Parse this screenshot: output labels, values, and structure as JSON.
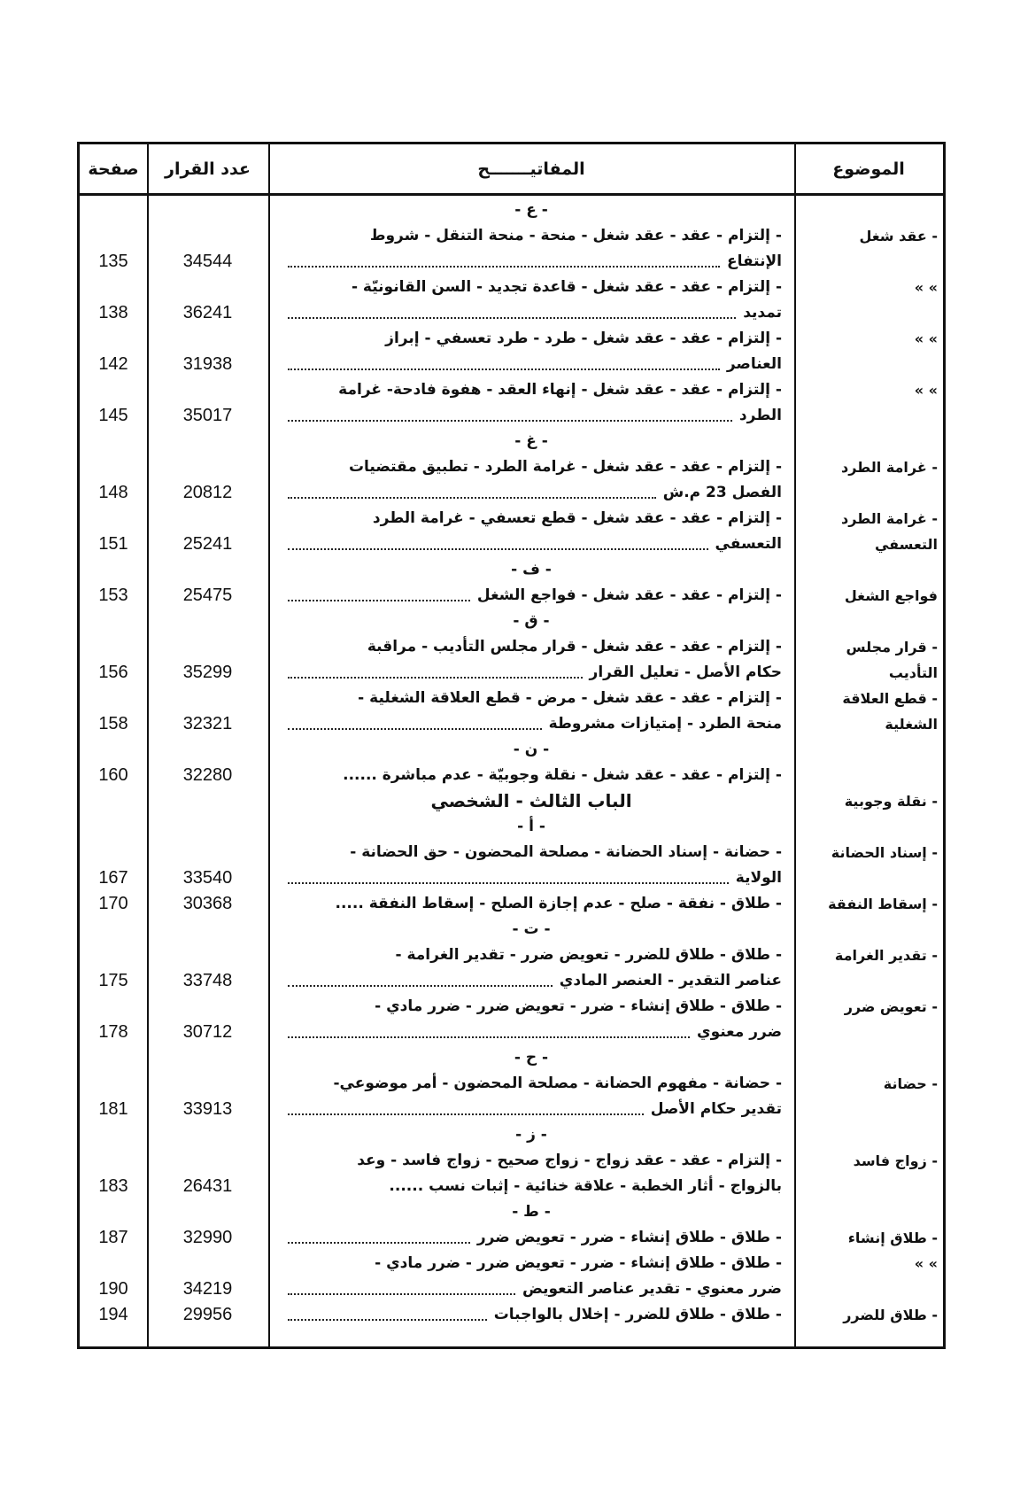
{
  "header": {
    "subject": "الموضوع",
    "keywords": "المفاتيـــــــح",
    "decision": "عدد القرار",
    "page": "صفحة"
  },
  "ditto": "»      »",
  "blocks": [
    {
      "letter": "- ع -"
    },
    {
      "subject": "- عقد شغل",
      "lines": [
        "- إلتزام - عقد - عقد شغل - منحة - منحة التنقل - شروط",
        "الإنتفاع"
      ],
      "decision": "34544",
      "page": "135"
    },
    {
      "subject": "»      »",
      "lines": [
        "- إلتزام - عقد - عقد شغل - قاعدة تجديد - السن القانونيّة -",
        "تمديد"
      ],
      "decision": "36241",
      "page": "138"
    },
    {
      "subject": "»      »",
      "lines": [
        "- إلتزام - عقد - عقد شغل - طرد - طرد تعسفي - إبراز",
        "العناصر"
      ],
      "decision": "31938",
      "page": "142"
    },
    {
      "subject": "»      »",
      "lines": [
        "- إلتزام - عقد - عقد شغل - إنهاء العقد - هفوة فادحة- غرامة",
        "الطرد"
      ],
      "decision": "35017",
      "page": "145"
    },
    {
      "letter": "- غ -"
    },
    {
      "subject": "- غرامة الطرد",
      "lines": [
        "- إلتزام - عقد - عقد شغل - غرامة الطرد - تطبيق مقتضيات",
        "الفصل 23 م.ش"
      ],
      "decision": "20812",
      "page": "148"
    },
    {
      "subject": "- غرامة الطرد التعسفي",
      "lines": [
        "- إلتزام - عقد - عقد شغل - قطع تعسفي - غرامة الطرد",
        "التعسفي"
      ],
      "decision": "25241",
      "page": "151"
    },
    {
      "letter": "- ف -"
    },
    {
      "subject": "فواجع الشغل",
      "lines": [
        "- إلتزام - عقد - عقد شغل - فواجع الشغل"
      ],
      "decision": "25475",
      "page": "153"
    },
    {
      "letter": "- ق -"
    },
    {
      "subject": "- قرار مجلس التأديب",
      "lines": [
        "- إلتزام - عقد - عقد شغل - قرار مجلس التأديب - مراقبة",
        "حكام الأصل - تعليل القرار"
      ],
      "decision": "35299",
      "page": "156"
    },
    {
      "subject": "- قطع العلاقة الشغلية",
      "lines": [
        "- إلتزام - عقد - عقد شغل - مرض - قطع العلاقة الشغلية -",
        "منحة الطرد - إمتيازات مشروطة"
      ],
      "decision": "32321",
      "page": "158"
    },
    {
      "letter": "- ن -"
    },
    {
      "subject": "",
      "lines": [
        "- إلتزام - عقد - عقد شغل - نقلة وجوبيّة - عدم مباشرة ......"
      ],
      "decision": "32280",
      "page": "160"
    },
    {
      "chapter": "الباب الثالث - الشخصي",
      "subject": "- نقلة وجوبية"
    },
    {
      "letter": "- أ -"
    },
    {
      "subject": "- إسناد الحضانة",
      "lines": [
        "- حضانة - إسناد الحضانة - مصلحة المحضون - حق الحضانة -",
        "الولاية"
      ],
      "decision": "33540",
      "page": "167"
    },
    {
      "subject": "- إسقاط النفقة",
      "lines": [
        "- طلاق - نفقة - صلح - عدم إجازة الصلح - إسقاط النفقة ....."
      ],
      "decision": "30368",
      "page": "170"
    },
    {
      "letter": "- ت -"
    },
    {
      "subject": "- تقدير الغرامة",
      "lines": [
        "- طلاق - طلاق للضرر - تعويض ضرر - تقدير الغرامة -",
        "عناصر التقدير - العنصر المادي"
      ],
      "decision": "33748",
      "page": "175"
    },
    {
      "subject": "- تعويض ضرر",
      "lines": [
        "- طلاق - طلاق إنشاء - ضرر - تعويض ضرر - ضرر مادي -",
        "ضرر معنوي"
      ],
      "decision": "30712",
      "page": "178"
    },
    {
      "letter": "- ح -"
    },
    {
      "subject": "- حضانة",
      "lines": [
        "- حضانة - مفهوم الحضانة - مصلحة المحضون - أمر موضوعي-",
        "تقدير حكام الأصل"
      ],
      "decision": "33913",
      "page": "181"
    },
    {
      "letter": "- ز -"
    },
    {
      "subject": "- زواج فاسد",
      "lines": [
        "- إلتزام - عقد - عقد زواج - زواج صحيح - زواج فاسد - وعد",
        "بالزواج - أثار الخطبة - علاقة خنائية - إثبات نسب ......"
      ],
      "decision": "26431",
      "page": "183"
    },
    {
      "letter": "- ط -"
    },
    {
      "subject": "- طلاق إنشاء",
      "lines": [
        "- طلاق - طلاق إنشاء - ضرر - تعويض ضرر"
      ],
      "decision": "32990",
      "page": "187"
    },
    {
      "subject": "»      »",
      "lines": [
        "- طلاق - طلاق إنشاء - ضرر - تعويض ضرر - ضرر مادي -",
        "ضرر معنوي - تقدير عناصر التعويض"
      ],
      "decision": "34219",
      "page": "190"
    },
    {
      "subject": "- طلاق للضرر",
      "lines": [
        "- طلاق - طلاق للضرر - إخلال بالواجبات"
      ],
      "decision": "29956",
      "page": "194"
    }
  ]
}
